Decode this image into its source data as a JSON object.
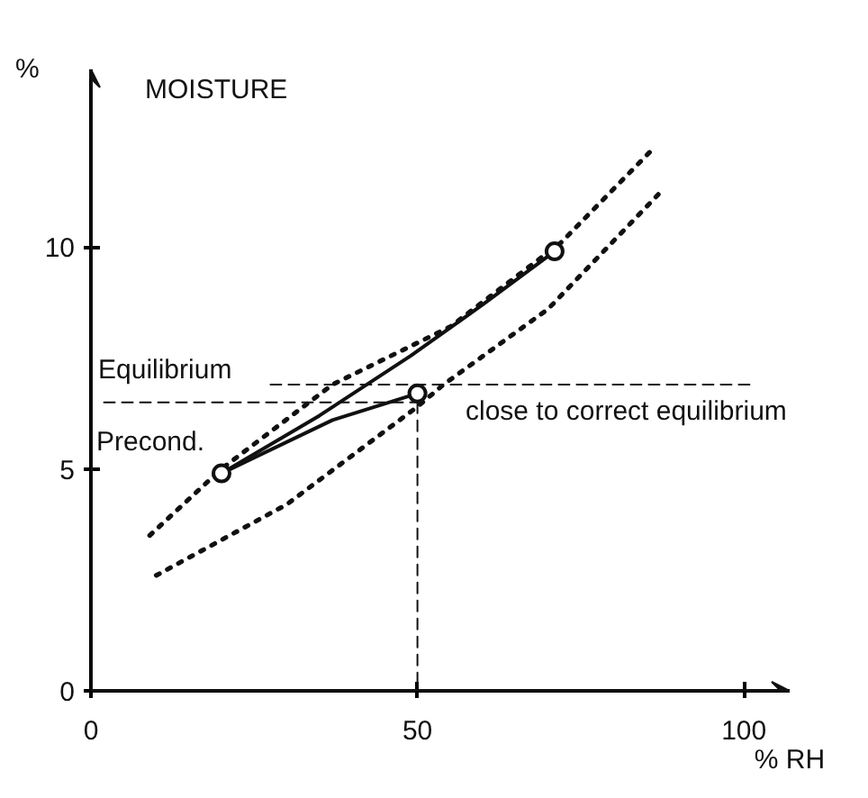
{
  "chart_data": {
    "type": "line",
    "title": "MOISTURE",
    "ylabel": "%",
    "xlabel": "% RH",
    "xlim": [
      0,
      107
    ],
    "ylim": [
      0,
      14
    ],
    "xticks": [
      0,
      50,
      100
    ],
    "yticks": [
      0,
      5,
      10
    ],
    "grid": false,
    "series": [
      {
        "color": "#111111",
        "line_style": "dotted",
        "x": [
          9,
          20,
          37,
          55,
          72,
          86
        ],
        "values": [
          3.5,
          5.0,
          6.9,
          8.2,
          10.1,
          12.2
        ]
      },
      {
        "color": "#111111",
        "line_style": "dotted",
        "x": [
          10,
          30,
          50,
          54,
          70,
          87
        ],
        "values": [
          2.6,
          4.2,
          6.4,
          6.9,
          8.6,
          11.2
        ]
      },
      {
        "color": "#111111",
        "line_style": "solid",
        "x": [
          71,
          60,
          49,
          35,
          20
        ],
        "values": [
          9.9,
          8.7,
          7.55,
          6.2,
          4.9
        ]
      },
      {
        "color": "#111111",
        "line_style": "solid",
        "x": [
          20,
          37,
          50
        ],
        "values": [
          4.9,
          6.1,
          6.7
        ]
      },
      {
        "color": "#111111",
        "line_style": "dashed",
        "x": [
          27.5,
          101
        ],
        "values": [
          6.9,
          6.9
        ]
      },
      {
        "color": "#111111",
        "line_style": "dashed",
        "x": [
          2,
          50
        ],
        "values": [
          6.5,
          6.5
        ]
      },
      {
        "color": "#111111",
        "line_style": "dashed",
        "x": [
          50,
          50
        ],
        "values": [
          6.5,
          0
        ]
      },
      {
        "type": "scatter",
        "marker": "circle",
        "color": "#111111",
        "x": [
          20,
          50,
          71
        ],
        "values": [
          4.9,
          6.7,
          9.9
        ]
      }
    ],
    "annotations": [
      "Equilibrium",
      "Precond.",
      "close to correct equilibrium"
    ]
  }
}
